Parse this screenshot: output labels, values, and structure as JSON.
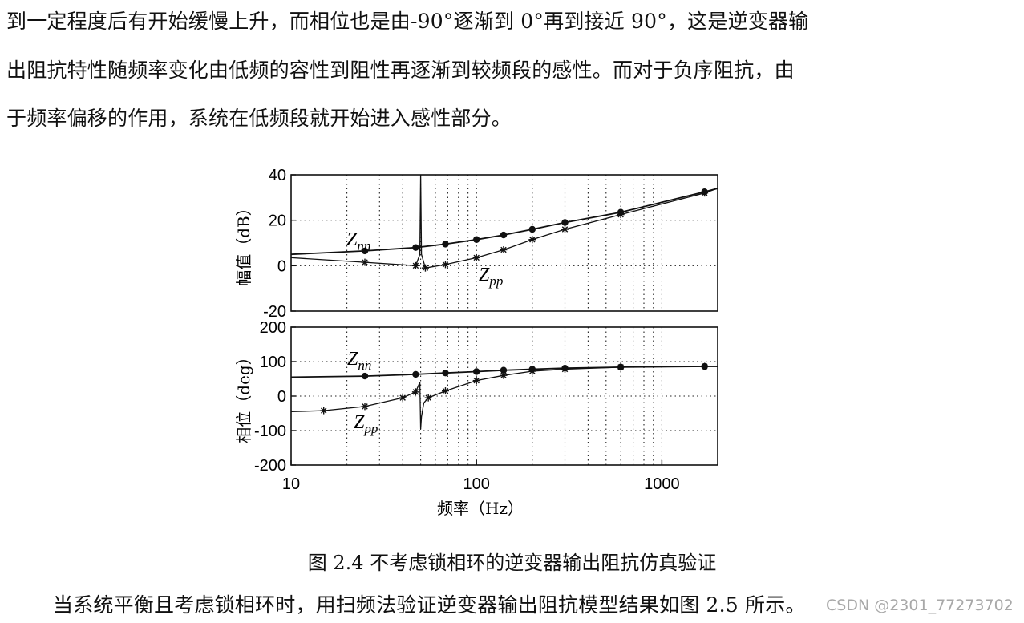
{
  "paragraph_top": [
    "到一定程度后有开始缓慢上升，而相位也是由-90°逐渐到 0°再到接近 90°，这是逆变器输",
    "出阻抗特性随频率变化由低频的容性到阻性再逐渐到较频段的感性。而对于负序阻抗，由",
    "于频率偏移的作用，系统在低频段就开始进入感性部分。"
  ],
  "caption": "图 2.4  不考虑锁相环的逆变器输出阻抗仿真验证",
  "paragraph_bottom": "当系统平衡且考虑锁相环时，用扫频法验证逆变器输出阻抗模型结果如图 2.5 所示。",
  "watermark": "CSDN @2301_77273702",
  "chart_data": [
    {
      "type": "line",
      "xscale": "log",
      "xlim": [
        10,
        2000
      ],
      "ylim": [
        -20,
        40
      ],
      "yticks": [
        "40",
        "20",
        "0",
        "-20"
      ],
      "ylabel": "幅值（dB）",
      "grid": true,
      "series": [
        {
          "name": "Z_nn",
          "marker": "dot",
          "x": [
            10,
            25,
            47,
            68,
            100,
            140,
            200,
            300,
            600,
            1700,
            2000
          ],
          "y": [
            5,
            6.5,
            8,
            9.5,
            11.5,
            13.5,
            16,
            19,
            23.5,
            32.5,
            34
          ]
        },
        {
          "name": "Z_pp",
          "marker": "star",
          "x": [
            10,
            25,
            47,
            49.5,
            50,
            50.5,
            53,
            68,
            100,
            140,
            200,
            300,
            600,
            1700,
            2000
          ],
          "y": [
            3.5,
            1.5,
            0,
            5,
            40,
            5,
            -1,
            0.5,
            3.5,
            7,
            11.5,
            16,
            22.5,
            32,
            34
          ]
        }
      ],
      "labels": [
        {
          "series": "Z_nn",
          "main": "Z",
          "sub": "nn"
        },
        {
          "series": "Z_pp",
          "main": "Z",
          "sub": "pp"
        }
      ]
    },
    {
      "type": "line",
      "xscale": "log",
      "xlim": [
        10,
        2000
      ],
      "ylim": [
        -200,
        200
      ],
      "yticks": [
        "200",
        "100",
        "0",
        "-100",
        "-200"
      ],
      "xticks": [
        "10",
        "100",
        "1000"
      ],
      "xlabel": "频率（Hz）",
      "ylabel": "相位（deg）",
      "grid": true,
      "series": [
        {
          "name": "Z_nn",
          "marker": "dot",
          "x": [
            10,
            25,
            47,
            68,
            100,
            140,
            200,
            300,
            600,
            1700,
            2000
          ],
          "y": [
            55,
            58,
            63,
            67,
            71,
            75,
            78,
            81,
            84,
            86,
            86
          ]
        },
        {
          "name": "Z_pp",
          "marker": "star",
          "x": [
            10,
            15,
            25,
            40,
            47,
            49.5,
            50,
            50.5,
            52,
            55,
            68,
            100,
            140,
            200,
            300,
            600,
            1700,
            2000
          ],
          "y": [
            -45,
            -42,
            -30,
            -5,
            12,
            40,
            -95,
            -60,
            -20,
            -5,
            15,
            45,
            60,
            72,
            78,
            84,
            86,
            86
          ]
        }
      ],
      "labels": [
        {
          "series": "Z_nn",
          "main": "Z",
          "sub": "nn"
        },
        {
          "series": "Z_pp",
          "main": "Z",
          "sub": "pp"
        }
      ]
    }
  ]
}
